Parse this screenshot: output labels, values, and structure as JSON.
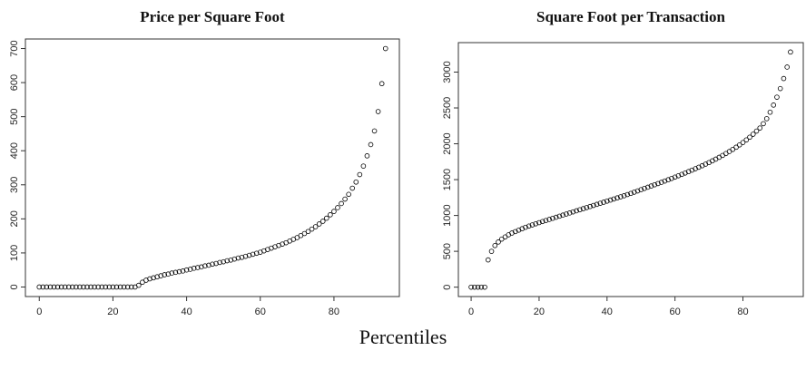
{
  "chart_data": [
    {
      "type": "scatter",
      "title": "Price per Square Foot",
      "x": [
        0,
        1,
        2,
        3,
        4,
        5,
        6,
        7,
        8,
        9,
        10,
        11,
        12,
        13,
        14,
        15,
        16,
        17,
        18,
        19,
        20,
        21,
        22,
        23,
        24,
        25,
        26,
        27,
        28,
        29,
        30,
        31,
        32,
        33,
        34,
        35,
        36,
        37,
        38,
        39,
        40,
        41,
        42,
        43,
        44,
        45,
        46,
        47,
        48,
        49,
        50,
        51,
        52,
        53,
        54,
        55,
        56,
        57,
        58,
        59,
        60,
        61,
        62,
        63,
        64,
        65,
        66,
        67,
        68,
        69,
        70,
        71,
        72,
        73,
        74,
        75,
        76,
        77,
        78,
        79,
        80,
        81,
        82,
        83,
        84,
        85,
        86,
        87,
        88,
        89,
        90,
        91,
        92,
        93,
        94
      ],
      "values": [
        0,
        0,
        0,
        0,
        0,
        0,
        0,
        0,
        0,
        0,
        0,
        0,
        0,
        0,
        0,
        0,
        0,
        0,
        0,
        0,
        0,
        0,
        0,
        0,
        0,
        0,
        0,
        5,
        14,
        20,
        24,
        27,
        30,
        33,
        36,
        38,
        41,
        43,
        45,
        47,
        50,
        52,
        55,
        57,
        59,
        62,
        64,
        67,
        69,
        72,
        74,
        77,
        79,
        82,
        85,
        87,
        90,
        93,
        96,
        99,
        102,
        106,
        110,
        114,
        118,
        122,
        126,
        130,
        135,
        140,
        145,
        151,
        157,
        163,
        170,
        177,
        185,
        193,
        202,
        212,
        222,
        233,
        245,
        258,
        272,
        290,
        308,
        330,
        355,
        385,
        418,
        458,
        515,
        597,
        700
      ],
      "color": "#000000",
      "xlim": [
        -3.76,
        97.76
      ],
      "ylim": [
        -28,
        728
      ],
      "xticks": [
        0,
        20,
        40,
        60,
        80
      ],
      "yticks": [
        0,
        100,
        200,
        300,
        400,
        500,
        600,
        700
      ]
    },
    {
      "type": "scatter",
      "title": "Square Foot per Transaction",
      "x": [
        0,
        1,
        2,
        3,
        4,
        5,
        6,
        7,
        8,
        9,
        10,
        11,
        12,
        13,
        14,
        15,
        16,
        17,
        18,
        19,
        20,
        21,
        22,
        23,
        24,
        25,
        26,
        27,
        28,
        29,
        30,
        31,
        32,
        33,
        34,
        35,
        36,
        37,
        38,
        39,
        40,
        41,
        42,
        43,
        44,
        45,
        46,
        47,
        48,
        49,
        50,
        51,
        52,
        53,
        54,
        55,
        56,
        57,
        58,
        59,
        60,
        61,
        62,
        63,
        64,
        65,
        66,
        67,
        68,
        69,
        70,
        71,
        72,
        73,
        74,
        75,
        76,
        77,
        78,
        79,
        80,
        81,
        82,
        83,
        84,
        85,
        86,
        87,
        88,
        89,
        90,
        91,
        92,
        93,
        94
      ],
      "values": [
        0,
        0,
        0,
        0,
        0,
        380,
        500,
        580,
        630,
        670,
        700,
        730,
        755,
        775,
        795,
        815,
        835,
        852,
        868,
        884,
        900,
        915,
        930,
        945,
        960,
        975,
        990,
        1005,
        1020,
        1035,
        1050,
        1065,
        1080,
        1095,
        1110,
        1125,
        1140,
        1155,
        1170,
        1185,
        1200,
        1215,
        1230,
        1245,
        1260,
        1275,
        1292,
        1308,
        1325,
        1342,
        1360,
        1377,
        1394,
        1411,
        1428,
        1445,
        1462,
        1480,
        1498,
        1516,
        1535,
        1554,
        1573,
        1592,
        1612,
        1632,
        1652,
        1673,
        1694,
        1716,
        1738,
        1762,
        1786,
        1811,
        1837,
        1864,
        1892,
        1921,
        1952,
        1984,
        2018,
        2054,
        2092,
        2133,
        2177,
        2220,
        2280,
        2350,
        2440,
        2540,
        2650,
        2770,
        2910,
        3070,
        3280
      ],
      "color": "#000000",
      "xlim": [
        -3.76,
        97.76
      ],
      "ylim": [
        -131,
        3411
      ],
      "xticks": [
        0,
        20,
        40,
        60,
        80
      ],
      "yticks": [
        0,
        500,
        1000,
        1500,
        2000,
        2500,
        3000
      ]
    }
  ],
  "xlabel": "Percentiles"
}
